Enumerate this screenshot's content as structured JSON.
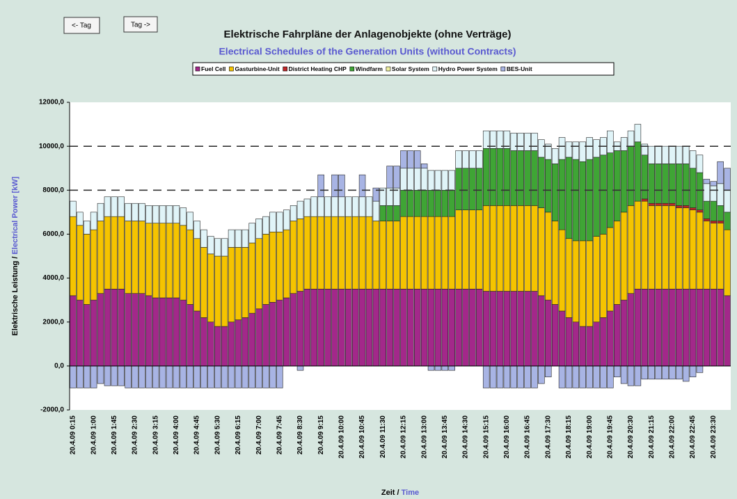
{
  "buttons": [
    "<- Tag",
    "Tag ->"
  ],
  "chart_data": {
    "type": "stacked_bar",
    "title": "Elektrische Fahrpläne der Anlagenobjekte (ohne Verträge)",
    "subtitle": "Electrical Schedules of the Generation Units (without Contracts)",
    "y_label": [
      "Elektrische Leistung / ",
      "Electrical Power [kW]"
    ],
    "x_label": [
      "Zeit / ",
      "Time"
    ],
    "categories": [
      "20.4.09 0:15",
      null,
      null,
      "20.4.09 1:00",
      null,
      null,
      "20.4.09 1:45",
      null,
      null,
      "20.4.09 2:30",
      null,
      null,
      "20.4.09 3:15",
      null,
      null,
      "20.4.09 4:00",
      null,
      null,
      "20.4.09 4:45",
      null,
      null,
      "20.4.09 5:30",
      null,
      null,
      "20.4.09 6:15",
      null,
      null,
      "20.4.09 7:00",
      null,
      null,
      "20.4.09 7:45",
      null,
      null,
      "20.4.09 8:30",
      null,
      null,
      "20.4.09 9:15",
      null,
      null,
      "20.4.09 10:00",
      null,
      null,
      "20.4.09 10:45",
      null,
      null,
      "20.4.09 11:30",
      null,
      null,
      "20.4.09 12:15",
      null,
      null,
      "20.4.09 13:00",
      null,
      null,
      "20.4.09 13:45",
      null,
      null,
      "20.4.09 14:30",
      null,
      null,
      "20.4.09 15:15",
      null,
      null,
      "20.4.09 16:00",
      null,
      null,
      "20.4.09 16:45",
      null,
      null,
      "20.4.09 17:30",
      null,
      null,
      "20.4.09 18:15",
      null,
      null,
      "20.4.09 19:00",
      null,
      null,
      "20.4.09 19:45",
      null,
      null,
      "20.4.09 20:30",
      null,
      null,
      "20.4.09 21:15",
      null,
      null,
      "20.4.09 22:00",
      null,
      null,
      "20.4.09 22:45",
      null,
      null,
      "20.4.09 23:30",
      null,
      null
    ],
    "series": [
      {
        "name": "Fuel Cell",
        "color": "#a3288a",
        "values": [
          3200,
          3000,
          2800,
          3000,
          3300,
          3500,
          3500,
          3500,
          3300,
          3300,
          3300,
          3200,
          3100,
          3100,
          3100,
          3100,
          3000,
          2800,
          2500,
          2200,
          2000,
          1800,
          1800,
          2000,
          2100,
          2200,
          2400,
          2600,
          2800,
          2900,
          3000,
          3100,
          3300,
          3400,
          3500,
          3500,
          3500,
          3500,
          3500,
          3500,
          3500,
          3500,
          3500,
          3500,
          3500,
          3500,
          3500,
          3500,
          3500,
          3500,
          3500,
          3500,
          3500,
          3500,
          3500,
          3500,
          3500,
          3500,
          3500,
          3500,
          3400,
          3400,
          3400,
          3400,
          3400,
          3400,
          3400,
          3400,
          3200,
          3000,
          2800,
          2500,
          2200,
          2000,
          1800,
          1800,
          2000,
          2200,
          2500,
          2800,
          3000,
          3300,
          3500,
          3500,
          3500,
          3500,
          3500,
          3500,
          3500,
          3500,
          3500,
          3500,
          3500,
          3500,
          3500,
          3200
        ]
      },
      {
        "name": "Gasturbine-Unit",
        "color": "#f5c400",
        "values": [
          3600,
          3400,
          3200,
          3200,
          3300,
          3300,
          3300,
          3300,
          3300,
          3300,
          3300,
          3300,
          3400,
          3400,
          3400,
          3400,
          3400,
          3400,
          3300,
          3200,
          3100,
          3200,
          3200,
          3400,
          3300,
          3200,
          3200,
          3200,
          3200,
          3200,
          3100,
          3100,
          3300,
          3300,
          3300,
          3300,
          3300,
          3300,
          3300,
          3300,
          3300,
          3300,
          3300,
          3300,
          3100,
          3100,
          3100,
          3100,
          3300,
          3300,
          3300,
          3300,
          3300,
          3300,
          3300,
          3300,
          3600,
          3600,
          3600,
          3600,
          3900,
          3900,
          3900,
          3900,
          3900,
          3900,
          3900,
          3900,
          4000,
          4000,
          3800,
          3700,
          3600,
          3700,
          3900,
          3900,
          3900,
          3800,
          3800,
          3800,
          4000,
          4000,
          4000,
          4000,
          3800,
          3800,
          3800,
          3800,
          3700,
          3700,
          3600,
          3500,
          3100,
          3000,
          3000,
          3000
        ]
      },
      {
        "name": "District Heating CHP",
        "color": "#c0282a",
        "values": [
          0,
          0,
          0,
          0,
          0,
          0,
          0,
          0,
          0,
          0,
          0,
          0,
          0,
          0,
          0,
          0,
          0,
          0,
          0,
          0,
          0,
          0,
          0,
          0,
          0,
          0,
          0,
          0,
          0,
          0,
          0,
          0,
          0,
          0,
          0,
          0,
          0,
          0,
          0,
          0,
          0,
          0,
          0,
          0,
          0,
          0,
          0,
          0,
          0,
          0,
          0,
          0,
          0,
          0,
          0,
          0,
          0,
          0,
          0,
          0,
          0,
          0,
          0,
          0,
          0,
          0,
          0,
          0,
          0,
          0,
          0,
          0,
          0,
          0,
          0,
          0,
          0,
          0,
          0,
          0,
          0,
          0,
          0,
          100,
          100,
          100,
          100,
          100,
          100,
          100,
          100,
          100,
          100,
          100,
          100,
          0
        ]
      },
      {
        "name": "Windfarm",
        "color": "#3fa535",
        "values": [
          0,
          0,
          0,
          0,
          0,
          0,
          0,
          0,
          0,
          0,
          0,
          0,
          0,
          0,
          0,
          0,
          0,
          0,
          0,
          0,
          0,
          0,
          0,
          0,
          0,
          0,
          0,
          0,
          0,
          0,
          0,
          0,
          0,
          0,
          0,
          0,
          0,
          0,
          0,
          0,
          0,
          0,
          0,
          0,
          0,
          700,
          700,
          700,
          1200,
          1200,
          1200,
          1200,
          1200,
          1200,
          1200,
          1200,
          1900,
          1900,
          1900,
          1900,
          2600,
          2600,
          2600,
          2600,
          2500,
          2500,
          2500,
          2500,
          2300,
          2400,
          2600,
          3200,
          3700,
          3700,
          3600,
          3700,
          3600,
          3600,
          3400,
          3200,
          2800,
          2700,
          2700,
          2000,
          1800,
          1800,
          1800,
          1800,
          1900,
          1900,
          1800,
          1700,
          800,
          900,
          700,
          800
        ]
      },
      {
        "name": "Solar System",
        "color": "#f0f0a0",
        "values": [
          0,
          0,
          0,
          0,
          0,
          0,
          0,
          0,
          0,
          0,
          0,
          0,
          0,
          0,
          0,
          0,
          0,
          0,
          0,
          0,
          0,
          0,
          0,
          0,
          0,
          0,
          0,
          0,
          0,
          0,
          0,
          0,
          0,
          0,
          0,
          0,
          0,
          0,
          0,
          0,
          0,
          0,
          0,
          0,
          0,
          0,
          0,
          0,
          0,
          0,
          0,
          0,
          0,
          0,
          0,
          0,
          0,
          0,
          0,
          0,
          0,
          0,
          0,
          0,
          0,
          0,
          0,
          0,
          0,
          0,
          0,
          0,
          0,
          0,
          0,
          0,
          0,
          0,
          0,
          0,
          0,
          0,
          0,
          0,
          0,
          0,
          0,
          0,
          0,
          0,
          0,
          0,
          0,
          0,
          0,
          0
        ]
      },
      {
        "name": "Hydro Power System",
        "color": "#e0f4f8",
        "values": [
          700,
          600,
          600,
          800,
          800,
          900,
          900,
          900,
          800,
          800,
          800,
          800,
          800,
          800,
          800,
          800,
          800,
          800,
          800,
          800,
          800,
          800,
          800,
          800,
          800,
          800,
          900,
          900,
          800,
          900,
          900,
          900,
          700,
          800,
          800,
          900,
          900,
          900,
          900,
          900,
          900,
          900,
          900,
          900,
          900,
          800,
          800,
          800,
          1000,
          1000,
          1000,
          1000,
          900,
          900,
          900,
          900,
          800,
          800,
          800,
          800,
          800,
          800,
          800,
          800,
          800,
          800,
          800,
          800,
          800,
          700,
          700,
          1000,
          700,
          800,
          900,
          1000,
          800,
          800,
          1000,
          400,
          600,
          700,
          800,
          500,
          800,
          800,
          800,
          800,
          800,
          800,
          800,
          800,
          800,
          700,
          1000,
          1000
        ]
      },
      {
        "name": "BES-Unit",
        "color": "#a8b4e4",
        "values": [
          -1000,
          -1000,
          -1000,
          -1000,
          -800,
          -900,
          -900,
          -900,
          -1000,
          -1000,
          -1000,
          -1000,
          -1000,
          -1000,
          -1000,
          -1000,
          -1000,
          -1000,
          -1000,
          -1000,
          -1000,
          -1000,
          -1000,
          -1000,
          -1000,
          -1000,
          -1000,
          -1000,
          -1000,
          -1000,
          -1000,
          0,
          0,
          -200,
          0,
          0,
          1000,
          0,
          1000,
          1000,
          0,
          0,
          1000,
          0,
          600,
          0,
          1000,
          1000,
          800,
          800,
          800,
          200,
          -200,
          -200,
          -200,
          -200,
          0,
          0,
          0,
          0,
          -1000,
          -1000,
          -1000,
          -1000,
          -1000,
          -1000,
          -1000,
          -1000,
          -800,
          -500,
          0,
          -1000,
          -1000,
          -1000,
          -1000,
          -1000,
          -1000,
          -1000,
          -1000,
          -500,
          -800,
          -900,
          -900,
          -600,
          -600,
          -600,
          -600,
          -600,
          -600,
          -700,
          -500,
          -300,
          200,
          200,
          1000,
          1000
        ]
      }
    ],
    "ylim": [
      -2000,
      12000
    ],
    "yticks": [
      {
        "value": -2000,
        "label": "-2000,0"
      },
      {
        "value": 0,
        "label": "0,0"
      },
      {
        "value": 2000,
        "label": "2000,0"
      },
      {
        "value": 4000,
        "label": "4000,0"
      },
      {
        "value": 6000,
        "label": "6000,0"
      },
      {
        "value": 8000,
        "label": "8000,0"
      },
      {
        "value": 10000,
        "label": "10000,0"
      },
      {
        "value": 12000,
        "label": "12000,0"
      }
    ],
    "dashed_lines": [
      8000,
      10000
    ]
  }
}
